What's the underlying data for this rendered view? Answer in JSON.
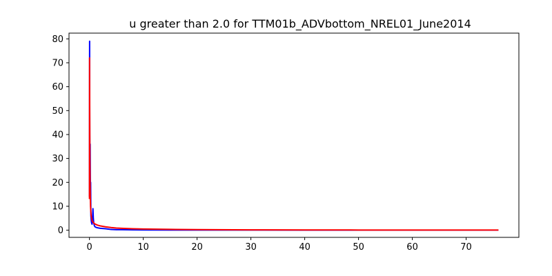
{
  "chart_data": {
    "type": "line",
    "title": "u greater than 2.0  for TTM01b_ADVbottom_NREL01_June2014",
    "xlabel": "",
    "ylabel": "",
    "xlim": [
      -3.8,
      79.8
    ],
    "ylim": [
      -3.0,
      82.4
    ],
    "xticks": [
      0,
      10,
      20,
      30,
      40,
      50,
      60,
      70
    ],
    "yticks": [
      0,
      10,
      20,
      30,
      40,
      50,
      60,
      70,
      80
    ],
    "grid": false,
    "series": [
      {
        "name": "blue",
        "color": "#0000ff",
        "x": [
          0,
          0.03,
          0.06,
          0.1,
          0.13,
          0.18,
          0.22,
          0.27,
          0.33,
          0.4,
          0.48,
          0.56,
          0.65,
          0.72,
          0.8,
          0.9,
          1.0,
          1.2,
          1.5,
          2,
          3,
          4,
          5,
          6,
          8,
          10,
          15,
          20,
          30,
          40,
          50,
          60,
          70,
          76
        ],
        "y": [
          14,
          79,
          40,
          25,
          36,
          15,
          20,
          6,
          4,
          3,
          2.5,
          4,
          9,
          5,
          3,
          2,
          1.5,
          1.2,
          1.0,
          0.8,
          0.6,
          0.3,
          0.2,
          0.2,
          0.15,
          0.1,
          0.08,
          0.06,
          0.05,
          0.04,
          0.03,
          0.03,
          0.02,
          0.02
        ]
      },
      {
        "name": "red",
        "color": "#ff0000",
        "x": [
          0,
          0.02,
          0.05,
          0.08,
          0.12,
          0.16,
          0.2,
          0.25,
          0.3,
          0.4,
          0.5,
          0.6,
          0.8,
          1.0,
          1.5,
          2,
          3,
          4,
          5,
          6,
          8,
          10,
          15,
          20,
          30,
          40,
          50,
          60,
          70,
          76
        ],
        "y": [
          13,
          72,
          50,
          30,
          20,
          14,
          10,
          8,
          6.5,
          5,
          4,
          3.6,
          3,
          2.6,
          2.1,
          1.8,
          1.4,
          1.1,
          0.9,
          0.8,
          0.6,
          0.5,
          0.35,
          0.25,
          0.15,
          0.1,
          0.08,
          0.06,
          0.05,
          0.05
        ]
      }
    ]
  }
}
